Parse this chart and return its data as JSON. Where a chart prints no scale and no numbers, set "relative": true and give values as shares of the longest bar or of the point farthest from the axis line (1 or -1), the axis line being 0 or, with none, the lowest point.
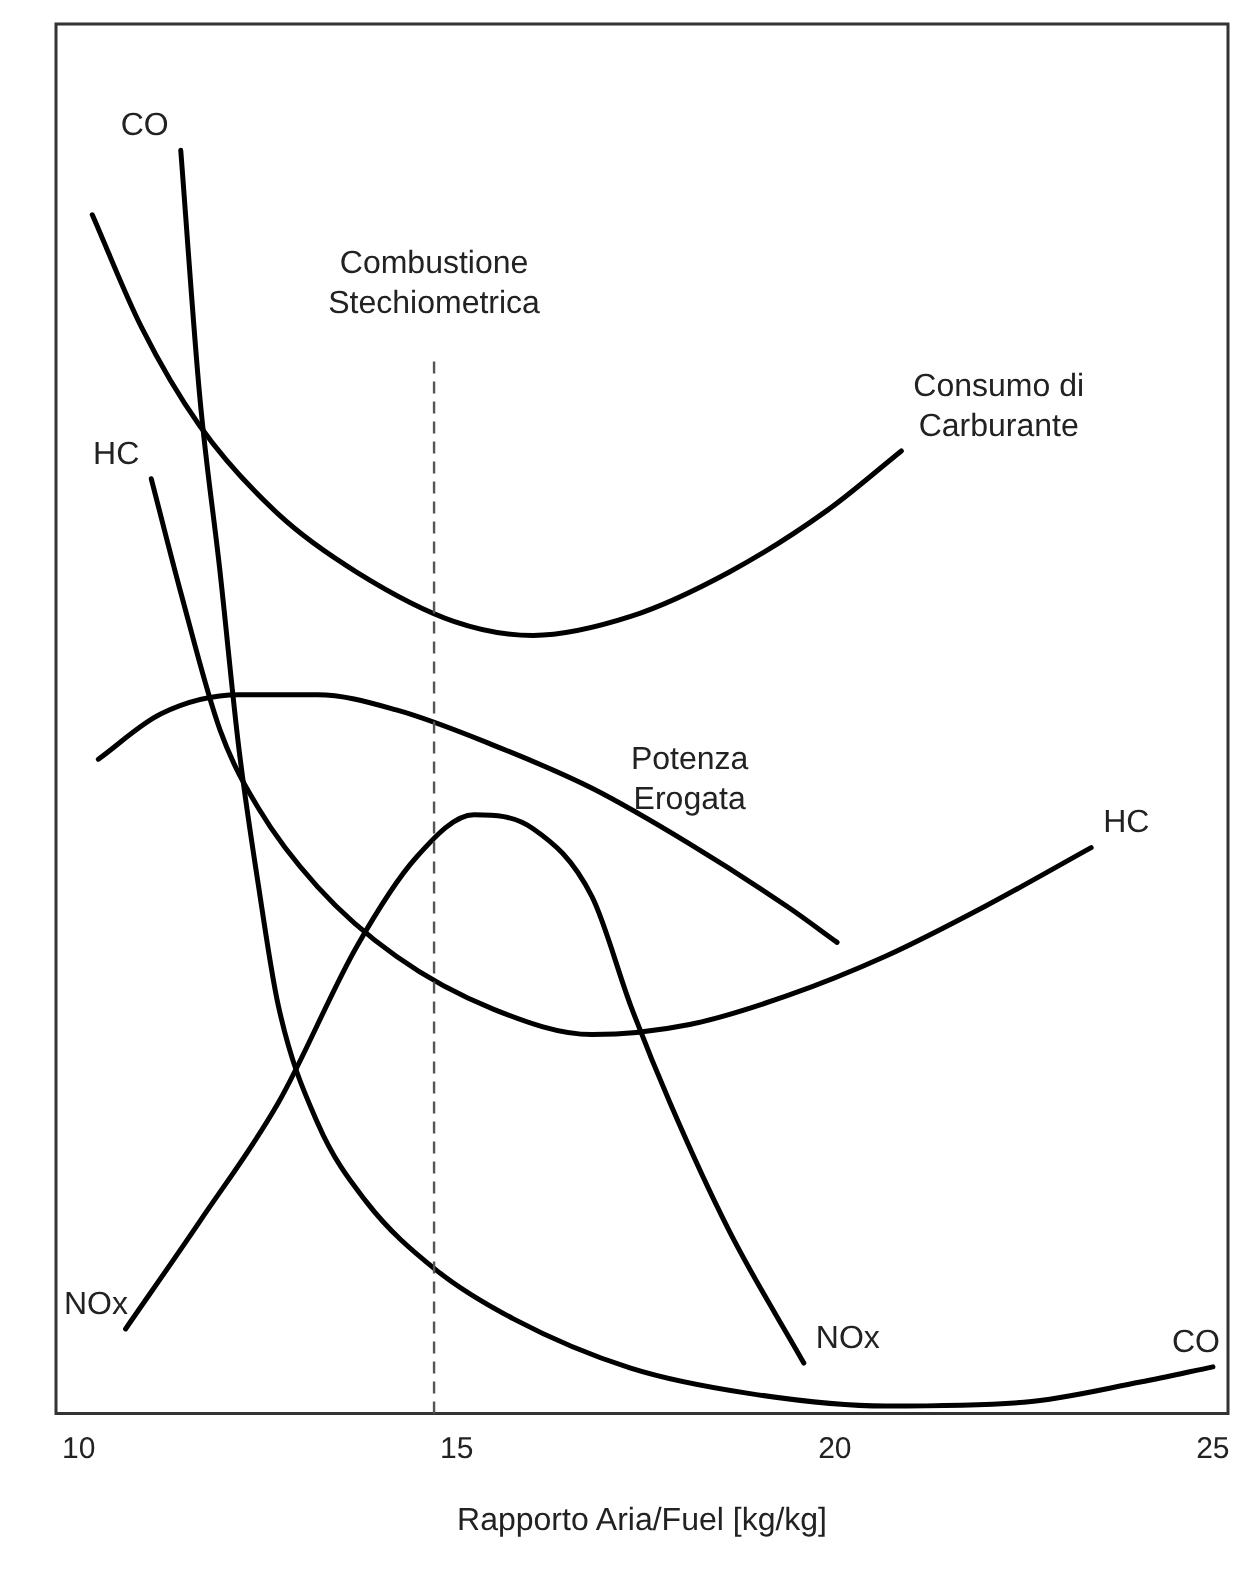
{
  "chart_data": {
    "type": "line",
    "xlabel": "Rapporto Aria/Fuel [kg/kg]",
    "relative": true,
    "xlim": [
      9.7,
      25.2
    ],
    "xticks": [
      10,
      15,
      20,
      25
    ],
    "grid": false,
    "legend": false,
    "tick_labels": "x",
    "marker": "none",
    "line_style": "solid",
    "series": [
      {
        "color": "#000000",
        "x": [
          11.35,
          11.6,
          11.87,
          12.12,
          12.38,
          12.64,
          13.16,
          13.8,
          14.72,
          15.75,
          17.3,
          18.86,
          20.67,
          22.5,
          24.04,
          25
        ],
        "values": [
          1.0,
          0.806,
          0.666,
          0.526,
          0.417,
          0.323,
          0.23,
          0.168,
          0.114,
          0.075,
          0.036,
          0.016,
          0.006,
          0.009,
          0.025,
          0.037
        ]
      },
      {
        "color": "#000000",
        "x": [
          10.18,
          10.83,
          11.6,
          12.64,
          13.68,
          14.97,
          16.01,
          17.3,
          18.6,
          19.9,
          20.88
        ],
        "values": [
          0.949,
          0.86,
          0.782,
          0.712,
          0.666,
          0.627,
          0.616,
          0.631,
          0.666,
          0.715,
          0.762
        ]
      },
      {
        "color": "#000000",
        "x": [
          10.96,
          11.35,
          11.87,
          12.38,
          13.16,
          14.2,
          15.49,
          16.79,
          18.08,
          19.38,
          20.67,
          21.97,
          23.39
        ],
        "values": [
          0.74,
          0.65,
          0.541,
          0.479,
          0.417,
          0.362,
          0.32,
          0.3,
          0.308,
          0.331,
          0.362,
          0.401,
          0.448
        ]
      },
      {
        "color": "#000000",
        "x": [
          10.26,
          11.09,
          12.12,
          13.16,
          14.2,
          15.49,
          16.79,
          18.08,
          19.38,
          20.03
        ],
        "values": [
          0.518,
          0.554,
          0.569,
          0.569,
          0.557,
          0.529,
          0.495,
          0.451,
          0.401,
          0.373
        ]
      },
      {
        "color": "#000000",
        "x": [
          10.62,
          11.6,
          12.64,
          13.68,
          14.46,
          15.23,
          16.01,
          16.79,
          17.3,
          17.82,
          18.6,
          19.59
        ],
        "values": [
          0.067,
          0.152,
          0.246,
          0.37,
          0.44,
          0.474,
          0.463,
          0.409,
          0.323,
          0.246,
          0.145,
          0.04
        ]
      }
    ],
    "ref_lines": [
      {
        "axis": "x",
        "value": 14.7,
        "label": "Combustione\nStechiometrica",
        "line_style": "dashed",
        "color": "#555555"
      }
    ],
    "annotations": [
      {
        "text": "CO",
        "x": 11.35,
        "y": 1.0
      },
      {
        "text": "Consumo di\nCarburante",
        "x": 20.88,
        "y": 0.762
      },
      {
        "text": "HC",
        "x": 10.96,
        "y": 0.74
      },
      {
        "text": "Potenza\nErogata",
        "x": 18.08,
        "y": 0.451
      },
      {
        "text": "HC",
        "x": 23.39,
        "y": 0.448
      },
      {
        "text": "NOx",
        "x": 10.62,
        "y": 0.067
      },
      {
        "text": "NOx",
        "x": 19.59,
        "y": 0.04
      },
      {
        "text": "CO",
        "x": 25,
        "y": 0.037
      }
    ]
  }
}
